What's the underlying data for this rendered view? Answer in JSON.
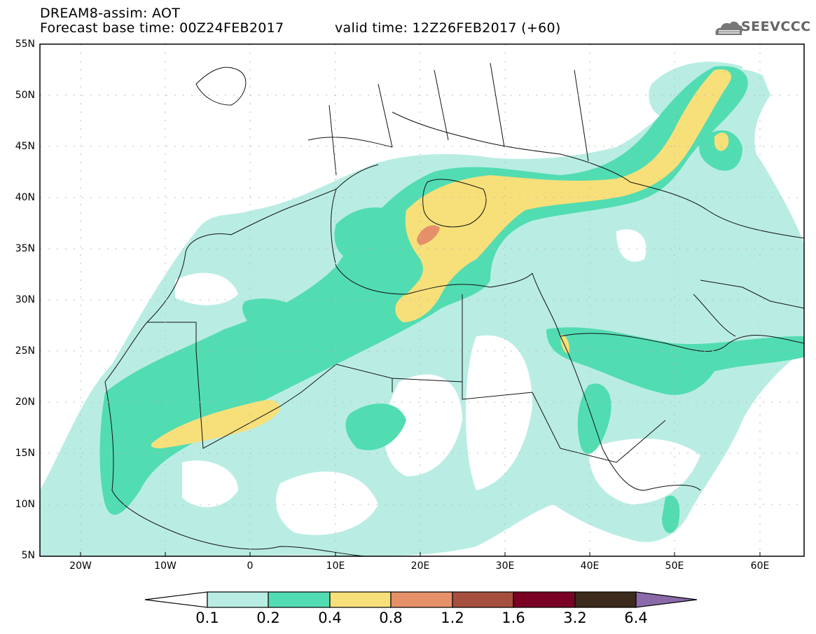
{
  "header": {
    "title": "DREAM8-assim: AOT",
    "base_time": "Forecast base time: 00Z24FEB2017",
    "valid_time": "valid time: 12Z26FEB2017 (+60)"
  },
  "logo": {
    "text": "SEEVCCC",
    "icon": "cloud-icon"
  },
  "map": {
    "lat_ticks": [
      "55N",
      "50N",
      "45N",
      "40N",
      "35N",
      "30N",
      "25N",
      "20N",
      "15N",
      "10N",
      "5N"
    ],
    "lon_ticks": [
      "20W",
      "10W",
      "0",
      "10E",
      "20E",
      "30E",
      "40E",
      "50E",
      "60E"
    ],
    "extent": {
      "lon": [
        -25,
        65
      ],
      "lat": [
        5,
        55
      ]
    }
  },
  "colorbar": {
    "labels": [
      "0.1",
      "0.2",
      "0.4",
      "0.8",
      "1.2",
      "1.6",
      "3.2",
      "6.4"
    ],
    "colors": [
      "#b9ede3",
      "#52dcb2",
      "#f7e07a",
      "#e6906a",
      "#a64f3e",
      "#7a0024",
      "#3c2a1c",
      "#8a6aa8"
    ]
  }
}
